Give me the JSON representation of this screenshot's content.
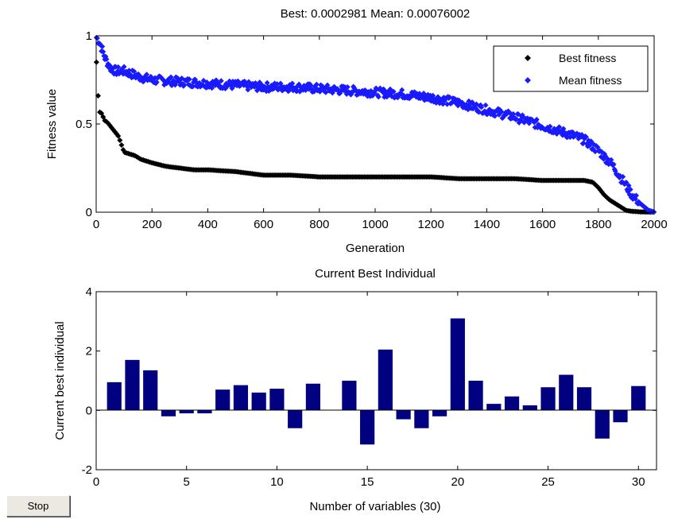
{
  "stop_button": {
    "label": "Stop"
  },
  "colors": {
    "best": "#000000",
    "mean": "#1a1aff",
    "bar": "#000080",
    "axes": "#000000"
  },
  "chart_data": [
    {
      "type": "scatter",
      "title": "Best: 0.0002981 Mean: 0.00076002",
      "xlabel": "Generation",
      "ylabel": "Fitness value",
      "xlim": [
        0,
        2000
      ],
      "ylim": [
        0,
        1
      ],
      "xticks": [
        0,
        200,
        400,
        600,
        800,
        1000,
        1200,
        1400,
        1600,
        1800,
        2000
      ],
      "xtick_labels": [
        "0",
        "200",
        "400",
        "600",
        "800",
        "1000",
        "1200",
        "1400",
        "1600",
        "1800",
        "2000"
      ],
      "yticks": [
        0,
        0.5,
        1
      ],
      "ytick_labels": [
        "0",
        "0.5",
        "1"
      ],
      "legend_position": "top-right",
      "marker": "diamond",
      "grid": false,
      "series": [
        {
          "name": "Best fitness",
          "color": "#000000",
          "x": [
            1,
            5,
            10,
            20,
            30,
            40,
            60,
            80,
            100,
            120,
            140,
            160,
            200,
            250,
            300,
            350,
            400,
            500,
            600,
            700,
            800,
            900,
            1000,
            1100,
            1200,
            1300,
            1400,
            1500,
            1600,
            1700,
            1750,
            1780,
            1800,
            1820,
            1840,
            1860,
            1880,
            1900,
            1920,
            1950,
            1980,
            2000
          ],
          "y": [
            0.85,
            0.72,
            0.57,
            0.56,
            0.52,
            0.51,
            0.47,
            0.43,
            0.34,
            0.33,
            0.32,
            0.3,
            0.28,
            0.26,
            0.25,
            0.24,
            0.24,
            0.23,
            0.21,
            0.21,
            0.2,
            0.2,
            0.2,
            0.2,
            0.2,
            0.19,
            0.19,
            0.19,
            0.18,
            0.18,
            0.18,
            0.17,
            0.14,
            0.1,
            0.07,
            0.05,
            0.03,
            0.01,
            0.005,
            0.002,
            0.001,
            0.0003
          ]
        },
        {
          "name": "Mean fitness",
          "color": "#1a1aff",
          "x": [
            1,
            10,
            20,
            30,
            50,
            70,
            100,
            150,
            200,
            300,
            400,
            500,
            600,
            700,
            800,
            900,
            1000,
            1100,
            1200,
            1300,
            1400,
            1500,
            1600,
            1700,
            1750,
            1800,
            1850,
            1900,
            1920,
            1950,
            1980,
            2000
          ],
          "y": [
            0.99,
            0.97,
            0.93,
            0.88,
            0.82,
            0.8,
            0.8,
            0.77,
            0.75,
            0.74,
            0.73,
            0.72,
            0.71,
            0.71,
            0.7,
            0.69,
            0.68,
            0.67,
            0.65,
            0.62,
            0.58,
            0.54,
            0.49,
            0.44,
            0.41,
            0.35,
            0.27,
            0.15,
            0.1,
            0.05,
            0.01,
            0.0008
          ]
        }
      ]
    },
    {
      "type": "bar",
      "title": "Current Best Individual",
      "xlabel": "Number of variables (30)",
      "ylabel": "Current best individual",
      "xlim": [
        0,
        31
      ],
      "ylim": [
        -2,
        4
      ],
      "xticks": [
        0,
        5,
        10,
        15,
        20,
        25,
        30
      ],
      "xtick_labels": [
        "0",
        "5",
        "10",
        "15",
        "20",
        "25",
        "30"
      ],
      "yticks": [
        -2,
        0,
        2,
        4
      ],
      "ytick_labels": [
        "-2",
        "0",
        "2",
        "4"
      ],
      "grid": false,
      "categories": [
        1,
        2,
        3,
        4,
        5,
        6,
        7,
        8,
        9,
        10,
        11,
        12,
        13,
        14,
        15,
        16,
        17,
        18,
        19,
        20,
        21,
        22,
        23,
        24,
        25,
        26,
        27,
        28,
        29,
        30
      ],
      "values": [
        0.95,
        1.7,
        1.35,
        -0.2,
        -0.1,
        -0.1,
        0.7,
        0.85,
        0.6,
        0.73,
        -0.6,
        0.9,
        0.0,
        1.0,
        -1.15,
        2.05,
        -0.3,
        -0.6,
        -0.2,
        3.1,
        1.0,
        0.22,
        0.47,
        0.17,
        0.78,
        1.2,
        0.78,
        -0.95,
        -0.4,
        0.82
      ]
    }
  ]
}
